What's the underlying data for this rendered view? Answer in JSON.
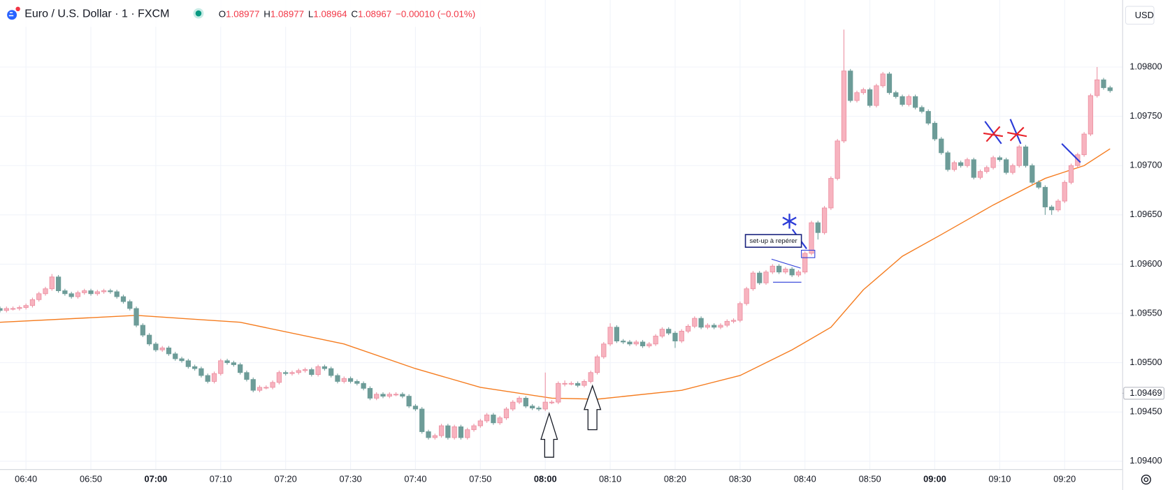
{
  "header": {
    "symbol": "Euro / U.S. Dollar · 1 · FXCM",
    "ohlc": [
      {
        "label": "O",
        "value": "1.08977"
      },
      {
        "label": "H",
        "value": "1.08977"
      },
      {
        "label": "L",
        "value": "1.08964"
      },
      {
        "label": "C",
        "value": "1.08967"
      }
    ],
    "change": "−0.00010 (−0.01%)"
  },
  "price_axis": {
    "currency": "USD"
  },
  "chart_data": {
    "type": "candlestick",
    "x": [
      "06:36",
      "06:37",
      "06:38",
      "06:39",
      "06:40",
      "06:41",
      "06:42",
      "06:43",
      "06:44",
      "06:45",
      "06:46",
      "06:47",
      "06:48",
      "06:49",
      "06:50",
      "06:51",
      "06:52",
      "06:53",
      "06:54",
      "06:55",
      "06:56",
      "06:57",
      "06:58",
      "06:59",
      "07:00",
      "07:01",
      "07:02",
      "07:03",
      "07:04",
      "07:05",
      "07:06",
      "07:07",
      "07:08",
      "07:09",
      "07:10",
      "07:11",
      "07:12",
      "07:13",
      "07:14",
      "07:15",
      "07:16",
      "07:17",
      "07:18",
      "07:19",
      "07:20",
      "07:21",
      "07:22",
      "07:23",
      "07:24",
      "07:25",
      "07:26",
      "07:27",
      "07:28",
      "07:29",
      "07:30",
      "07:31",
      "07:32",
      "07:33",
      "07:34",
      "07:35",
      "07:36",
      "07:37",
      "07:38",
      "07:39",
      "07:40",
      "07:41",
      "07:42",
      "07:43",
      "07:44",
      "07:45",
      "07:46",
      "07:47",
      "07:48",
      "07:49",
      "07:50",
      "07:51",
      "07:52",
      "07:53",
      "07:54",
      "07:55",
      "07:56",
      "07:57",
      "07:58",
      "07:59",
      "08:00",
      "08:01",
      "08:02",
      "08:03",
      "08:04",
      "08:05",
      "08:06",
      "08:07",
      "08:08",
      "08:09",
      "08:10",
      "08:11",
      "08:12",
      "08:13",
      "08:14",
      "08:15",
      "08:16",
      "08:17",
      "08:18",
      "08:19",
      "08:20",
      "08:21",
      "08:22",
      "08:23",
      "08:24",
      "08:25",
      "08:26",
      "08:27",
      "08:28",
      "08:29",
      "08:30",
      "08:31",
      "08:32",
      "08:33",
      "08:34",
      "08:35",
      "08:36",
      "08:37",
      "08:38",
      "08:39",
      "08:40",
      "08:41",
      "08:42",
      "08:43",
      "08:44",
      "08:45",
      "08:46",
      "08:47",
      "08:48",
      "08:49",
      "08:50",
      "08:51",
      "08:52",
      "08:53",
      "08:54",
      "08:55",
      "08:56",
      "08:57",
      "08:58",
      "08:59",
      "09:00",
      "09:01",
      "09:02",
      "09:03",
      "09:04",
      "09:05",
      "09:06",
      "09:07",
      "09:08",
      "09:09",
      "09:10",
      "09:11",
      "09:12",
      "09:13",
      "09:14",
      "09:15",
      "09:16",
      "09:17",
      "09:18",
      "09:19",
      "09:20",
      "09:21",
      "09:22",
      "09:23",
      "09:24",
      "09:25",
      "09:26",
      "09:27"
    ],
    "open": [
      1.09555,
      1.09553,
      1.09555,
      1.09555,
      1.09556,
      1.09558,
      1.09564,
      1.0957,
      1.09575,
      1.09587,
      1.09573,
      1.0957,
      1.09567,
      1.09571,
      1.09573,
      1.0957,
      1.09572,
      1.09573,
      1.09572,
      1.09567,
      1.09562,
      1.09555,
      1.09538,
      1.09528,
      1.09519,
      1.09513,
      1.09515,
      1.09509,
      1.09504,
      1.09502,
      1.09496,
      1.09494,
      1.09487,
      1.09481,
      1.09489,
      1.09502,
      1.095,
      1.09498,
      1.0949,
      1.09483,
      1.09472,
      1.09475,
      1.09475,
      1.0948,
      1.0949,
      1.09489,
      1.0949,
      1.09492,
      1.09493,
      1.09488,
      1.09496,
      1.09494,
      1.09487,
      1.09481,
      1.09484,
      1.09481,
      1.09479,
      1.09474,
      1.09464,
      1.09468,
      1.09466,
      1.09468,
      1.09468,
      1.09466,
      1.09456,
      1.09453,
      1.0943,
      1.09424,
      1.09426,
      1.09436,
      1.09424,
      1.09435,
      1.09424,
      1.09432,
      1.09436,
      1.09441,
      1.09447,
      1.09439,
      1.09444,
      1.09453,
      1.0946,
      1.09464,
      1.09456,
      1.09454,
      1.09453,
      1.0946,
      1.0946,
      1.09479,
      1.09479,
      1.09479,
      1.09477,
      1.09481,
      1.0949,
      1.09506,
      1.09519,
      1.09536,
      1.09522,
      1.09521,
      1.09519,
      1.09521,
      1.09517,
      1.09519,
      1.09527,
      1.09534,
      1.0953,
      1.09522,
      1.09532,
      1.09537,
      1.09545,
      1.09536,
      1.09538,
      1.09536,
      1.09538,
      1.09542,
      1.09543,
      1.0956,
      1.09575,
      1.09591,
      1.09581,
      1.09592,
      1.09598,
      1.09592,
      1.09595,
      1.09589,
      1.09592,
      1.09611,
      1.09642,
      1.09632,
      1.09657,
      1.09687,
      1.09725,
      1.09796,
      1.09766,
      1.09774,
      1.09777,
      1.09761,
      1.09781,
      1.09793,
      1.09774,
      1.0977,
      1.09762,
      1.0977,
      1.09759,
      1.09755,
      1.09743,
      1.09727,
      1.09713,
      1.09696,
      1.09703,
      1.097,
      1.09706,
      1.09688,
      1.09694,
      1.09698,
      1.09708,
      1.09706,
      1.09693,
      1.097,
      1.09719,
      1.097,
      1.09683,
      1.09678,
      1.09658,
      1.09655,
      1.09664,
      1.09683,
      1.097,
      1.09711,
      1.09732,
      1.09771,
      1.09787,
      1.09779
    ],
    "high": [
      1.09557,
      1.09557,
      1.09557,
      1.09558,
      1.0956,
      1.09566,
      1.09572,
      1.09577,
      1.0959,
      1.09589,
      1.09575,
      1.09572,
      1.09573,
      1.09575,
      1.09575,
      1.09574,
      1.09575,
      1.09575,
      1.09574,
      1.09569,
      1.09564,
      1.09557,
      1.0954,
      1.0953,
      1.09521,
      1.09517,
      1.09517,
      1.09511,
      1.09506,
      1.09504,
      1.09498,
      1.09496,
      1.09489,
      1.09491,
      1.09504,
      1.09504,
      1.09502,
      1.095,
      1.09492,
      1.09485,
      1.09477,
      1.09477,
      1.09482,
      1.09492,
      1.09492,
      1.09492,
      1.09494,
      1.09495,
      1.09495,
      1.09498,
      1.09498,
      1.09496,
      1.09489,
      1.09486,
      1.09486,
      1.09483,
      1.09481,
      1.09476,
      1.0947,
      1.0947,
      1.0947,
      1.0947,
      1.0947,
      1.09468,
      1.09458,
      1.09455,
      1.09432,
      1.09428,
      1.09438,
      1.09438,
      1.09437,
      1.09437,
      1.09434,
      1.09438,
      1.09443,
      1.09449,
      1.09449,
      1.09446,
      1.09455,
      1.09462,
      1.09466,
      1.09466,
      1.09458,
      1.09456,
      1.0949,
      1.09462,
      1.09481,
      1.09482,
      1.09481,
      1.09481,
      1.09483,
      1.09492,
      1.09508,
      1.09521,
      1.0954,
      1.09538,
      1.09524,
      1.09523,
      1.09523,
      1.09523,
      1.09521,
      1.09529,
      1.09536,
      1.09536,
      1.09532,
      1.09534,
      1.09539,
      1.09547,
      1.09547,
      1.0954,
      1.0954,
      1.0954,
      1.09544,
      1.09545,
      1.09562,
      1.09577,
      1.09593,
      1.09593,
      1.09594,
      1.096,
      1.096,
      1.09597,
      1.09597,
      1.09594,
      1.09613,
      1.09644,
      1.09644,
      1.09659,
      1.09689,
      1.09727,
      1.09838,
      1.09798,
      1.09776,
      1.09779,
      1.09779,
      1.09783,
      1.09795,
      1.09795,
      1.09776,
      1.09772,
      1.09772,
      1.09772,
      1.09761,
      1.09757,
      1.09745,
      1.09729,
      1.09715,
      1.09705,
      1.09705,
      1.09708,
      1.09708,
      1.09696,
      1.097,
      1.0971,
      1.0971,
      1.09708,
      1.09702,
      1.09721,
      1.09721,
      1.09702,
      1.09685,
      1.0968,
      1.0966,
      1.09666,
      1.09685,
      1.09702,
      1.09713,
      1.09734,
      1.09773,
      1.098,
      1.09789,
      1.09781
    ],
    "low": [
      1.09551,
      1.09551,
      1.09553,
      1.09553,
      1.09554,
      1.09556,
      1.09562,
      1.09568,
      1.09573,
      1.09571,
      1.09568,
      1.09565,
      1.09565,
      1.09569,
      1.09568,
      1.09568,
      1.0957,
      1.0957,
      1.09565,
      1.0956,
      1.09553,
      1.09536,
      1.09526,
      1.09517,
      1.09511,
      1.09511,
      1.09507,
      1.09502,
      1.095,
      1.09494,
      1.09492,
      1.09485,
      1.09479,
      1.09479,
      1.09487,
      1.09498,
      1.09496,
      1.09488,
      1.09481,
      1.0947,
      1.0947,
      1.09473,
      1.09473,
      1.09478,
      1.09487,
      1.09487,
      1.09488,
      1.0949,
      1.09486,
      1.09486,
      1.09492,
      1.09485,
      1.09479,
      1.09479,
      1.09479,
      1.09477,
      1.09472,
      1.09462,
      1.09462,
      1.09464,
      1.09464,
      1.09466,
      1.09464,
      1.09454,
      1.09451,
      1.09428,
      1.09422,
      1.09422,
      1.09424,
      1.09422,
      1.09422,
      1.09422,
      1.09422,
      1.0943,
      1.09434,
      1.09439,
      1.09437,
      1.09437,
      1.09442,
      1.09451,
      1.09458,
      1.09454,
      1.09452,
      1.09451,
      1.09451,
      1.09458,
      1.09458,
      1.09476,
      1.09477,
      1.09475,
      1.09475,
      1.09479,
      1.09488,
      1.09504,
      1.09517,
      1.0952,
      1.09519,
      1.09517,
      1.09517,
      1.09515,
      1.09515,
      1.09517,
      1.09525,
      1.09528,
      1.09515,
      1.0952,
      1.0953,
      1.09535,
      1.09534,
      1.09534,
      1.09534,
      1.09534,
      1.09536,
      1.0954,
      1.09541,
      1.09558,
      1.09573,
      1.09579,
      1.09579,
      1.0959,
      1.0959,
      1.0959,
      1.09587,
      1.09587,
      1.0959,
      1.09609,
      1.09625,
      1.0963,
      1.09655,
      1.09685,
      1.09723,
      1.09764,
      1.09764,
      1.09772,
      1.09759,
      1.09759,
      1.09779,
      1.09772,
      1.09768,
      1.0976,
      1.0976,
      1.09757,
      1.09753,
      1.09741,
      1.09725,
      1.09711,
      1.09694,
      1.09694,
      1.09698,
      1.09698,
      1.09686,
      1.09686,
      1.09692,
      1.09696,
      1.09704,
      1.09691,
      1.09691,
      1.09698,
      1.09698,
      1.09681,
      1.09676,
      1.0965,
      1.0965,
      1.09653,
      1.09662,
      1.09681,
      1.09698,
      1.09709,
      1.0973,
      1.09769,
      1.09777,
      1.09774
    ],
    "close": [
      1.09553,
      1.09555,
      1.09555,
      1.09556,
      1.09558,
      1.09564,
      1.0957,
      1.09575,
      1.09587,
      1.09573,
      1.0957,
      1.09567,
      1.09571,
      1.09573,
      1.0957,
      1.09572,
      1.09573,
      1.09572,
      1.09567,
      1.09562,
      1.09555,
      1.09538,
      1.09528,
      1.09519,
      1.09513,
      1.09515,
      1.09509,
      1.09504,
      1.09502,
      1.09496,
      1.09494,
      1.09487,
      1.09481,
      1.09489,
      1.09502,
      1.095,
      1.09498,
      1.0949,
      1.09483,
      1.09472,
      1.09475,
      1.09475,
      1.0948,
      1.0949,
      1.09489,
      1.0949,
      1.09492,
      1.09493,
      1.09488,
      1.09496,
      1.09494,
      1.09487,
      1.09481,
      1.09484,
      1.09481,
      1.09479,
      1.09474,
      1.09464,
      1.09468,
      1.09466,
      1.09468,
      1.09468,
      1.09466,
      1.09456,
      1.09453,
      1.0943,
      1.09424,
      1.09426,
      1.09436,
      1.09424,
      1.09435,
      1.09424,
      1.09432,
      1.09436,
      1.09441,
      1.09447,
      1.09439,
      1.09444,
      1.09453,
      1.0946,
      1.09464,
      1.09456,
      1.09454,
      1.09453,
      1.0946,
      1.0946,
      1.09479,
      1.09479,
      1.09479,
      1.09477,
      1.09481,
      1.0949,
      1.09506,
      1.09519,
      1.09536,
      1.09522,
      1.09521,
      1.09519,
      1.09521,
      1.09517,
      1.09519,
      1.09527,
      1.09534,
      1.0953,
      1.09522,
      1.09532,
      1.09537,
      1.09545,
      1.09536,
      1.09538,
      1.09536,
      1.09538,
      1.09542,
      1.09543,
      1.0956,
      1.09575,
      1.09591,
      1.09581,
      1.09592,
      1.09598,
      1.09592,
      1.09595,
      1.09589,
      1.09592,
      1.09611,
      1.09642,
      1.09632,
      1.09657,
      1.09687,
      1.09725,
      1.09796,
      1.09766,
      1.09774,
      1.09777,
      1.09761,
      1.09781,
      1.09793,
      1.09774,
      1.0977,
      1.09762,
      1.0977,
      1.09759,
      1.09755,
      1.09743,
      1.09727,
      1.09713,
      1.09696,
      1.09703,
      1.097,
      1.09706,
      1.09688,
      1.09694,
      1.09698,
      1.09708,
      1.09706,
      1.09693,
      1.097,
      1.09719,
      1.097,
      1.09683,
      1.09678,
      1.09658,
      1.09655,
      1.09664,
      1.09683,
      1.097,
      1.09711,
      1.09732,
      1.09771,
      1.09787,
      1.09779,
      1.09776
    ],
    "up_color": "#f7b3bf",
    "up_border": "#ec8fa1",
    "down_color": "#6d9c98",
    "overlay": {
      "type": "line",
      "color": "#f57c1f",
      "x": [
        "06:36",
        "06:57",
        "07:13",
        "07:29",
        "07:40",
        "07:50",
        "08:01",
        "08:08",
        "08:21",
        "08:30",
        "08:38",
        "08:44",
        "08:49",
        "08:55",
        "09:01",
        "09:09",
        "09:17",
        "09:23",
        "09:27"
      ],
      "values": [
        1.09541,
        1.09548,
        1.09541,
        1.09519,
        1.09494,
        1.09475,
        1.09464,
        1.09463,
        1.09472,
        1.09487,
        1.09513,
        1.09536,
        1.09574,
        1.09608,
        1.0963,
        1.0966,
        1.09687,
        1.097,
        1.09717
      ]
    },
    "ylim": [
      1.09392,
      1.09868
    ],
    "yticks": [
      {
        "value": 1.098,
        "label": "1.09800"
      },
      {
        "value": 1.0975,
        "label": "1.09750"
      },
      {
        "value": 1.097,
        "label": "1.09700"
      },
      {
        "value": 1.0965,
        "label": "1.09650"
      },
      {
        "value": 1.096,
        "label": "1.09600"
      },
      {
        "value": 1.0955,
        "label": "1.09550"
      },
      {
        "value": 1.095,
        "label": "1.09500"
      },
      {
        "value": 1.0945,
        "label": "1.09450"
      },
      {
        "value": 1.094,
        "label": "1.09400"
      }
    ],
    "xticks": [
      "06:40",
      "06:50",
      "07:00",
      "07:10",
      "07:20",
      "07:30",
      "07:40",
      "07:50",
      "08:00",
      "08:10",
      "08:20",
      "08:30",
      "08:40",
      "08:50",
      "09:00",
      "09:10",
      "09:20"
    ],
    "xticks_bold": [
      false,
      false,
      true,
      false,
      false,
      false,
      false,
      false,
      true,
      false,
      false,
      false,
      false,
      false,
      true,
      false,
      false
    ],
    "price_marker": {
      "value": 1.09469,
      "label": "1.09469"
    },
    "grid": true,
    "annotations": [
      {
        "text": "set-up à repérer"
      }
    ]
  }
}
